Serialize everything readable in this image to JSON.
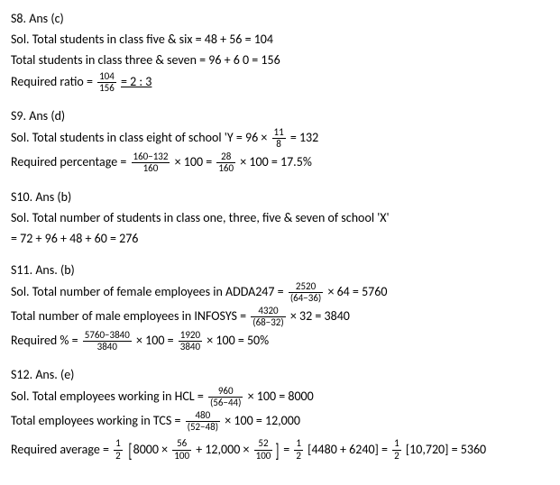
{
  "s8": {
    "ans": "S8. Ans (c)",
    "l1": "Sol. Total students in class five & six = 48 + 56 = 104",
    "l2": "Total students in class three & seven = 96 + 6 0 = 156",
    "l3a": "Required ratio = ",
    "f1n": "104",
    "f1d": "156",
    "l3b": " = 2 : 3"
  },
  "s9": {
    "ans": "S9. Ans (d)",
    "l1a": "Sol. Total students in class eight of school 'Y = 96 × ",
    "f1n": "11",
    "f1d": "8",
    "l1b": " =    132",
    "l2a": "Required percentage = ",
    "f2n": "160−132",
    "f2d": "160",
    "l2b": " × 100 = ",
    "f3n": "28",
    "f3d": "160",
    "l2c": " × 100 = 17.5%"
  },
  "s10": {
    "ans": "S10. Ans (b)",
    "l1": "Sol. Total number of students in class one, three, five & seven of school 'X'",
    "l2": "= 72 + 96 + 48 + 60 = 276"
  },
  "s11": {
    "ans": "S11. Ans. (b)",
    "l1a": "Sol. Total number of female employees in ADDA247 = ",
    "f1n": "2520",
    "f1d": "(64−36)",
    "l1b": " × 64 = 5760",
    "l2a": "Total number of male employees in INFOSYS = ",
    "f2n": "4320",
    "f2d": "(68−32)",
    "l2b": " × 32 = 3840",
    "l3a": "Required % = ",
    "f3n": "5760−3840",
    "f3d": "3840",
    "l3b": " × 100 = ",
    "f4n": "1920",
    "f4d": "3840",
    "l3c": " × 100 = 50%"
  },
  "s12": {
    "ans": "S12. Ans. (e)",
    "l1a": "Sol. Total employees working in HCL = ",
    "f1n": "960",
    "f1d": "(56−44)",
    "l1b": " × 100 = 8000",
    "l2a": "Total employees working in TCS = ",
    "f2n": "480",
    "f2d": "(52−48)",
    "l2b": " × 100 = 12,000",
    "l3a": "Required average = ",
    "fh1n": "1",
    "fh1d": "2",
    "l3b": "8000 × ",
    "f3n": "56",
    "f3d": "100",
    "l3c": " + 12,000 × ",
    "f4n": "52",
    "f4d": "100",
    "l3d": " = ",
    "fh2n": "1",
    "fh2d": "2",
    "l3e": "[4480 + 6240] = ",
    "fh3n": "1",
    "fh3d": "2",
    "l3f": "[10,720] = 5360"
  }
}
